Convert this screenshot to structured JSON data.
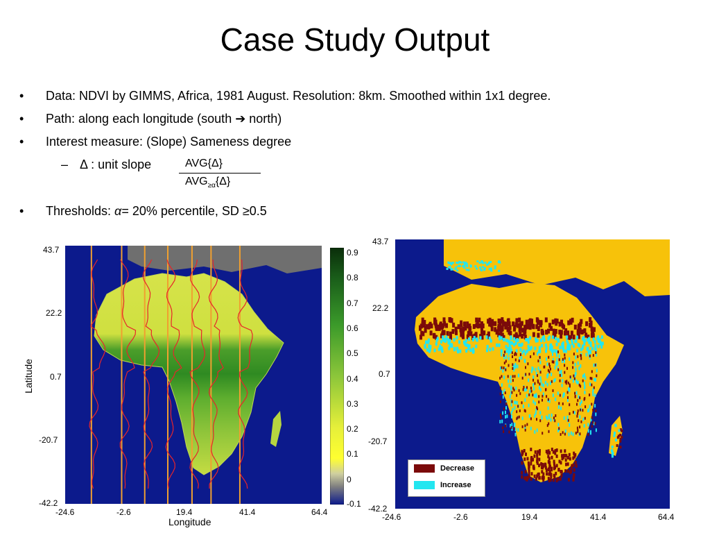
{
  "slide": {
    "title": "Case Study Output",
    "bullets": [
      {
        "bullet": "•",
        "text": "Data: NDVI by GIMMS, Africa, 1981 August. Resolution: 8km. Smoothed within 1x1 degree."
      },
      {
        "bullet": "•",
        "text": "Path: along each longitude (south ➔ north)"
      },
      {
        "bullet": "•",
        "text": "Interest measure: (Slope) Sameness degree"
      }
    ],
    "sub_bullet": {
      "dash": "–",
      "text": "Δ : unit slope"
    },
    "fraction": {
      "numerator": "AVG{Δ}",
      "denominator_main": "AVG",
      "denominator_sub": "≥α",
      "denominator_tail": "{Δ}"
    },
    "threshold_bullet": {
      "bullet": "•",
      "prefix": "Thresholds: ",
      "alpha": "α",
      "suffix": "= 20% percentile, SD ≥0.5"
    }
  },
  "left_plot": {
    "ylabel": "Latitude",
    "xlabel": "Longitude",
    "y_ticks": [
      "43.7",
      "22.2",
      "0.7",
      "-20.7",
      "-42.2"
    ],
    "x_ticks": [
      "-24.6",
      "-2.6",
      "19.4",
      "41.4",
      "64.4"
    ],
    "colorbar_ticks": [
      "0.9",
      "0.8",
      "0.7",
      "0.6",
      "0.5",
      "0.4",
      "0.3",
      "0.2",
      "0.1",
      "0",
      "-0.1"
    ],
    "path_longitudes": [
      -15.5,
      -5,
      3,
      11,
      19.4,
      26,
      36
    ]
  },
  "right_plot": {
    "y_ticks": [
      "43.7",
      "22.2",
      "0.7",
      "-20.7",
      "-42.2"
    ],
    "x_ticks": [
      "-24.6",
      "-2.6",
      "19.4",
      "41.4",
      "64.4"
    ],
    "legend": [
      {
        "label": "Decrease",
        "color": "#7b0a0a"
      },
      {
        "label": "Increase",
        "color": "#22e6f0"
      }
    ]
  },
  "colors": {
    "ocean": "#0c1a8c",
    "land": "#f7c20a",
    "europe": "#6f6f6f",
    "decrease": "#7b0a0a",
    "increase": "#22e6f0"
  }
}
